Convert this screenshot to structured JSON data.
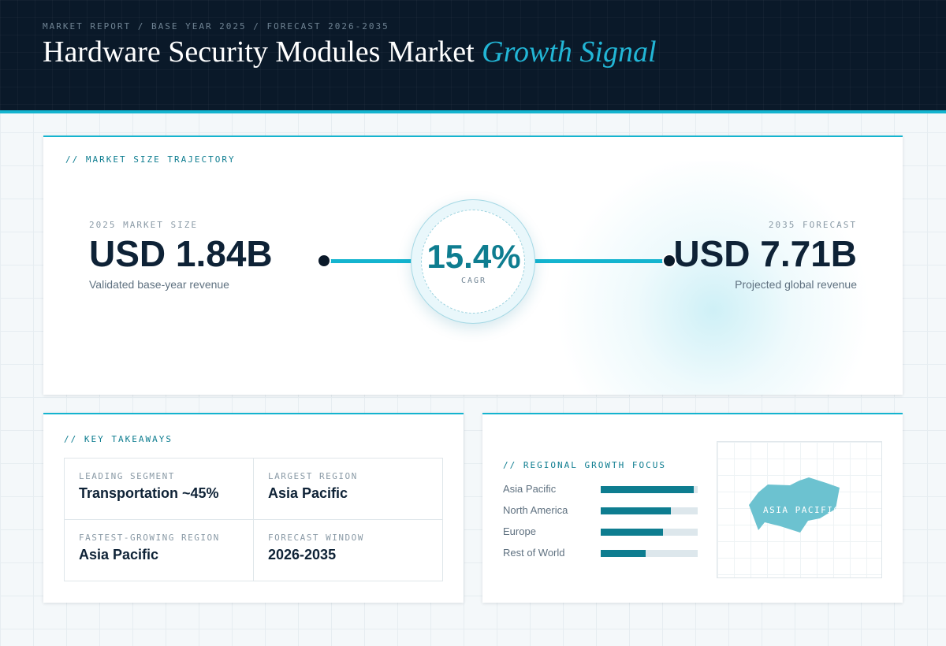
{
  "header": {
    "breadcrumb": "MARKET REPORT / BASE YEAR 2025 / FORECAST 2026-2035",
    "title_main": "Hardware Security Modules Market",
    "title_accent": "Growth Signal"
  },
  "trajectory": {
    "section_label": "// MARKET SIZE TRAJECTORY",
    "start": {
      "label": "2025 MARKET SIZE",
      "value": "USD 1.84B",
      "sub": "Validated base-year revenue"
    },
    "end": {
      "label": "2035 FORECAST",
      "value": "USD 7.71B",
      "sub": "Projected global revenue"
    },
    "cagr": {
      "value": "15.4%",
      "label": "CAGR"
    }
  },
  "takeaways": {
    "section_label": "// KEY TAKEAWAYS",
    "items": [
      {
        "key": "LEADING SEGMENT",
        "value": "Transportation ~45%"
      },
      {
        "key": "LARGEST REGION",
        "value": "Asia Pacific"
      },
      {
        "key": "FASTEST-GROWING REGION",
        "value": "Asia Pacific"
      },
      {
        "key": "FORECAST WINDOW",
        "value": "2026-2035"
      }
    ]
  },
  "regional": {
    "section_label": "// REGIONAL GROWTH FOCUS",
    "bars": [
      {
        "name": "Asia Pacific",
        "level": 0.96
      },
      {
        "name": "North America",
        "level": 0.72
      },
      {
        "name": "Europe",
        "level": 0.64
      },
      {
        "name": "Rest of World",
        "level": 0.46
      }
    ],
    "map_label": "ASIA PACIFIC",
    "map_color": "#6cc2d0"
  },
  "colors": {
    "accent": "#14b4cf",
    "deep_teal": "#0e7d90",
    "navy": "#0a1929"
  }
}
